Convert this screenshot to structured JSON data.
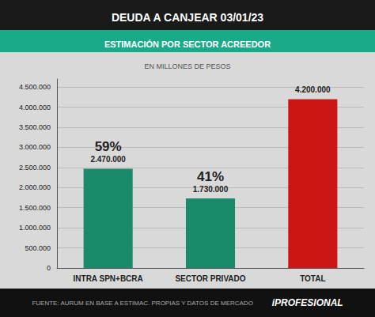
{
  "chart_data": {
    "type": "bar",
    "title": "DEUDA A CANJEAR 03/01/23",
    "subtitle": "ESTIMACIÓN POR SECTOR ACREEDOR",
    "ylabel": "EN MILLONES DE PESOS",
    "categories": [
      "INTRA SPN+BCRA",
      "SECTOR PRIVADO",
      "TOTAL"
    ],
    "values": [
      2470000,
      1730000,
      4200000
    ],
    "value_labels": [
      "2.470.000",
      "1.730.000",
      "4.200.000"
    ],
    "colors": [
      "#1a8a6a",
      "#1a8a6a",
      "#cc1515"
    ],
    "data_labels": true,
    "ylim": [
      0,
      4700000
    ],
    "yticks": [
      0,
      {
        "value": 500000,
        "label": "500.000"
      },
      {
        "value": 1000000,
        "label": "1.000.000"
      },
      {
        "value": 1500000,
        "label": "1.500.000"
      },
      {
        "value": 2000000,
        "label": "2.000.000"
      },
      {
        "value": 2500000,
        "label": "2.500.000"
      },
      {
        "value": 3000000,
        "label": "3.000.000"
      },
      {
        "value": 3500000,
        "label": "3.500.000"
      },
      {
        "value": 4000000,
        "label": "4.000.000"
      },
      {
        "value": 4500000,
        "label": "4.500.000"
      }
    ],
    "grid": true,
    "annotations": [
      {
        "category": "INTRA SPN+BCRA",
        "text": "59%"
      },
      {
        "category": "SECTOR PRIVADO",
        "text": "41%"
      },
      {
        "text": "FUENTE: AURUM EN BASE A ESTIMAC. PROPIAS Y DATOS DE MERCADO"
      },
      {
        "text": "iPROFESIONAL"
      }
    ]
  }
}
